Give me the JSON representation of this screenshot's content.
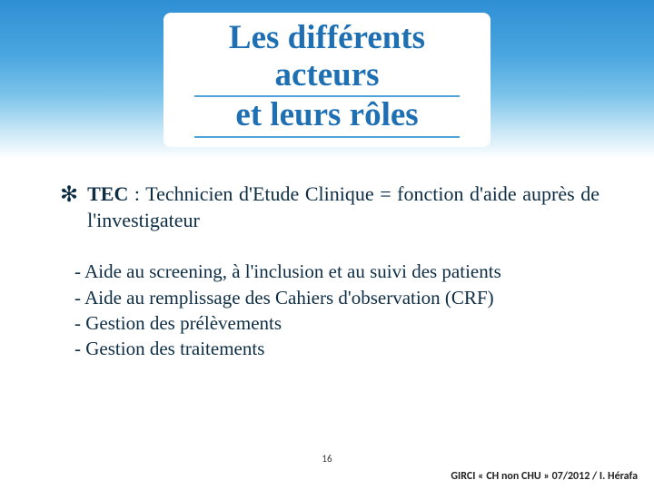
{
  "colors": {
    "gradient_top": "#2f8fd4",
    "gradient_mid": "#7bc3ea",
    "gradient_bottom": "#ffffff",
    "title_text": "#1f6fb3",
    "title_underline": "#4fa3d7",
    "body_text": "#0d2d45",
    "footer_text": "#222222"
  },
  "typography": {
    "title_fontsize_pt": 28,
    "body_fontsize_pt": 17,
    "sublist_fontsize_pt": 16,
    "footer_fontsize_pt": 9,
    "font_family": "Georgia / serif"
  },
  "title": {
    "line1": "Les différents acteurs",
    "line2": "et leurs rôles"
  },
  "main_bullet": {
    "marker": "✻",
    "acronym": "TEC",
    "text_after_acronym": " : Technicien d'Etude Clinique = fonction d'aide auprès de l'investigateur"
  },
  "sub_items": [
    "- Aide au screening, à l'inclusion et au suivi des patients",
    "- Aide au remplissage des Cahiers d'observation (CRF)",
    "- Gestion des prélèvements",
    "- Gestion des traitements"
  ],
  "page_number": "16",
  "footer": "GIRCI « CH non CHU » 07/2012 / I. Hérafa"
}
